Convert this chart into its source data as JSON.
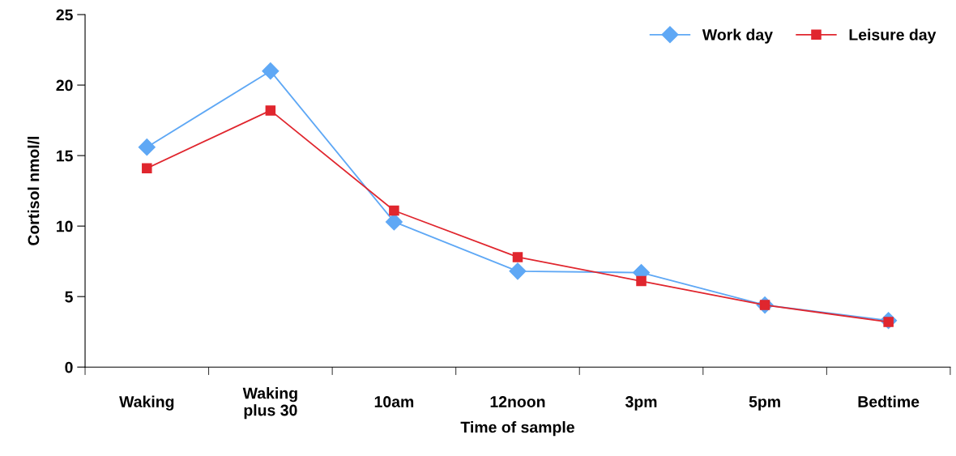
{
  "chart_data": {
    "type": "line",
    "xlabel": "Time of sample",
    "ylabel": "Cortisol nmol/l",
    "categories": [
      "Waking",
      "Waking\nplus 30",
      "10am",
      "12noon",
      "3pm",
      "5pm",
      "Bedtime"
    ],
    "series": [
      {
        "name": "Work day",
        "color": "#5fa8f5",
        "marker": "diamond",
        "values": [
          15.6,
          21.0,
          10.3,
          6.8,
          6.7,
          4.4,
          3.3
        ]
      },
      {
        "name": "Leisure day",
        "color": "#e0262e",
        "marker": "square",
        "values": [
          14.1,
          18.2,
          11.1,
          7.8,
          6.1,
          4.4,
          3.2
        ]
      }
    ],
    "ylim": [
      0,
      25
    ],
    "yticks": [
      0,
      5,
      10,
      15,
      20,
      25
    ],
    "grid": false,
    "legend": "top right",
    "line_style": "solid"
  }
}
